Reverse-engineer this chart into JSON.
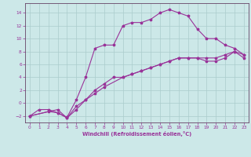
{
  "xlabel": "Windchill (Refroidissement éolien,°C)",
  "bg_color": "#cce8e8",
  "grid_color": "#aacccc",
  "line_color": "#993399",
  "spine_color": "#664466",
  "xlim": [
    -0.5,
    23.5
  ],
  "ylim": [
    -3,
    15.5
  ],
  "xticks": [
    0,
    1,
    2,
    3,
    4,
    5,
    6,
    7,
    8,
    9,
    10,
    11,
    12,
    13,
    14,
    15,
    16,
    17,
    18,
    19,
    20,
    21,
    22,
    23
  ],
  "yticks": [
    -2,
    0,
    2,
    4,
    6,
    8,
    10,
    12,
    14
  ],
  "line2_x": [
    0,
    1,
    2,
    3,
    4,
    5,
    6,
    7,
    8,
    9,
    10,
    11,
    12,
    13,
    14,
    15,
    16,
    17,
    18,
    19,
    20,
    21,
    22,
    23
  ],
  "line2_y": [
    -2,
    -1,
    -1,
    -1.5,
    -2.2,
    0.5,
    4,
    8.5,
    9,
    9,
    12,
    12.5,
    12.5,
    13,
    14,
    14.5,
    14,
    13.5,
    11.5,
    10,
    10,
    9,
    8.5,
    7.5
  ],
  "line1_x": [
    0,
    2,
    3,
    4,
    5,
    6,
    7,
    8,
    9,
    10,
    11,
    12,
    13,
    14,
    15,
    16,
    17,
    18,
    19,
    20,
    21,
    22,
    23
  ],
  "line1_y": [
    -2,
    -1.3,
    -1.5,
    -2.3,
    -0.5,
    0.5,
    2,
    3,
    4,
    4,
    4.5,
    5,
    5.5,
    6,
    6.5,
    7,
    7,
    7,
    6.5,
    6.5,
    7,
    8,
    7
  ],
  "line3_x": [
    0,
    3,
    4,
    5,
    6,
    7,
    8,
    10,
    11,
    12,
    13,
    14,
    15,
    16,
    17,
    18,
    19,
    20,
    21,
    22,
    23
  ],
  "line3_y": [
    -2,
    -1,
    -2.3,
    -1,
    0.5,
    1.5,
    2.5,
    4,
    4.5,
    5,
    5.5,
    6,
    6.5,
    7,
    7,
    7,
    7,
    7,
    7.5,
    8,
    7.5
  ]
}
